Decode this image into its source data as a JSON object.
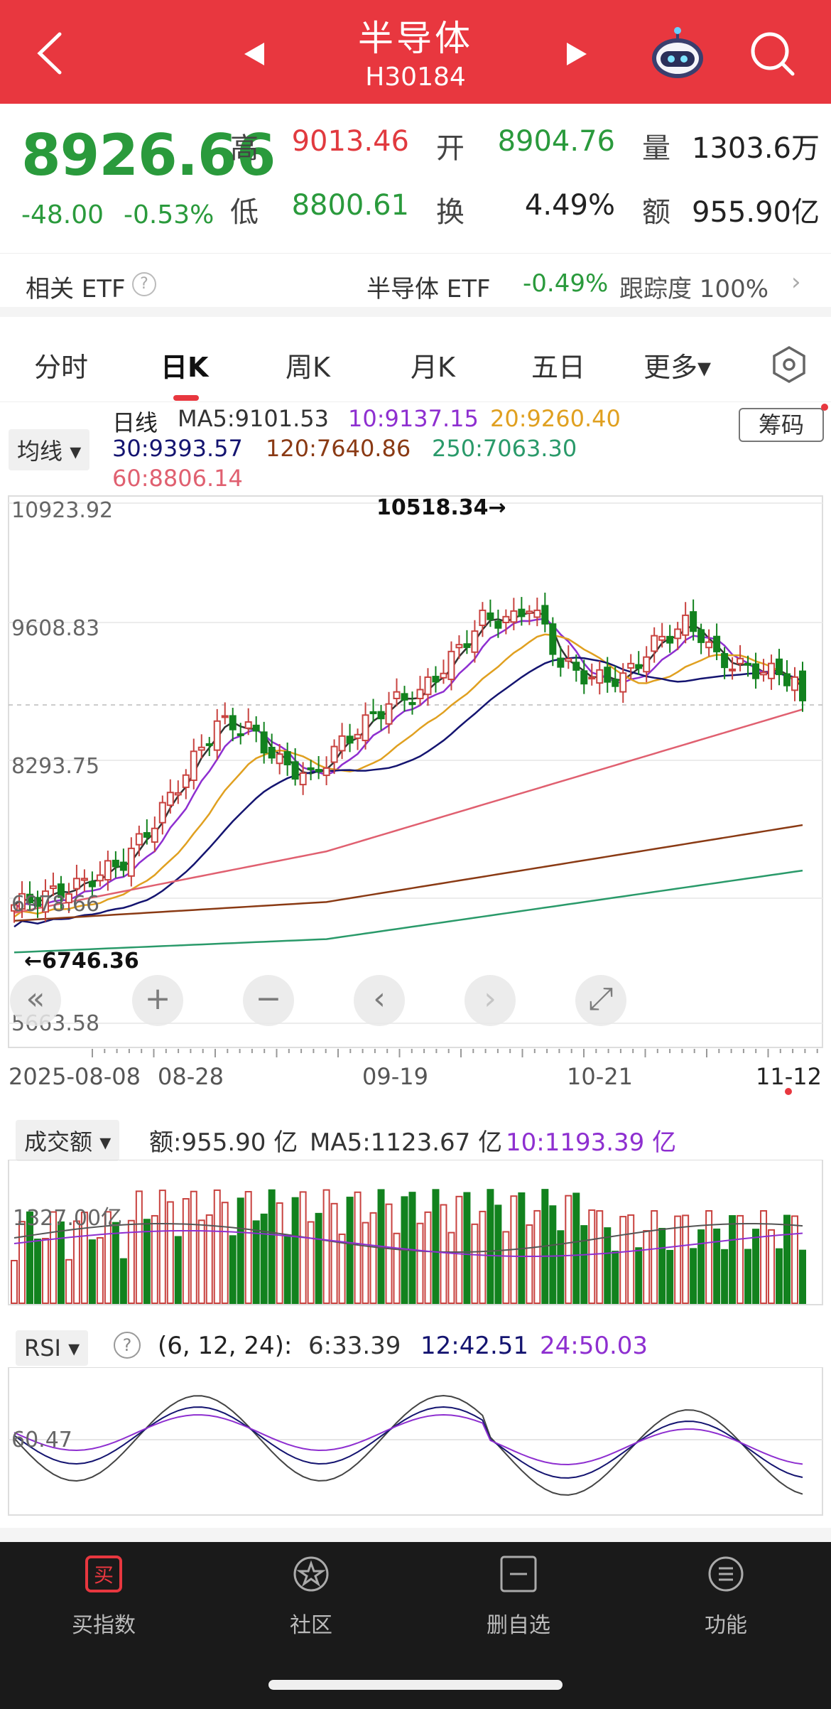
{
  "header": {
    "title": "半导体",
    "code": "H30184",
    "colors": {
      "bg": "#e8373f"
    }
  },
  "quote": {
    "price": "8926.66",
    "change": "-48.00",
    "change_pct": "-0.53%",
    "high_label": "高",
    "high": "9013.46",
    "open_label": "开",
    "open": "8904.76",
    "volume_label": "量",
    "volume": "1303.6万",
    "low_label": "低",
    "low": "8800.61",
    "turnover_label": "换",
    "turnover": "4.49%",
    "amount_label": "额",
    "amount": "955.90亿"
  },
  "etf": {
    "label": "相关 ETF",
    "help_icon": "question-circle-icon",
    "name": "半导体 ETF",
    "pct": "-0.49%",
    "tracking": "跟踪度  100%",
    "arrow": "›"
  },
  "tabs": [
    {
      "label": "分时"
    },
    {
      "label": "日K",
      "active": true
    },
    {
      "label": "周K"
    },
    {
      "label": "月K"
    },
    {
      "label": "五日"
    },
    {
      "label": "更多▾"
    }
  ],
  "ma_legend": {
    "selector": "均线",
    "title": "日线",
    "ma5": "MA5:9101.53",
    "ma10": "10:9137.15",
    "ma20": "20:9260.40",
    "ma30": "30:9393.57",
    "ma120": "120:7640.86",
    "ma250": "250:7063.30",
    "ma60": "60:8806.14",
    "chip_button": "筹码",
    "colors": {
      "ma5": "#333333",
      "ma10": "#8e2fd0",
      "ma20": "#e0a020",
      "ma30": "#141470",
      "ma60": "#e06070",
      "ma120": "#8a3a14",
      "ma250": "#2a9a6a"
    }
  },
  "price_axis": {
    "ticks": [
      "10923.92",
      "9608.83",
      "8293.75",
      "6978.66",
      "5663.58"
    ],
    "max_label": "10518.34→",
    "min_label": "←6746.36",
    "dates": [
      "2025-08-08",
      "08-28",
      "09-19",
      "10-21",
      "11-12"
    ]
  },
  "chart_tools": [
    "«",
    "+",
    "−",
    "‹",
    "›",
    "⤢"
  ],
  "volume_panel": {
    "selector": "成交额",
    "amount": "额:955.90 亿",
    "ma5": "MA5:1123.67 亿",
    "ma10": "10:1193.39 亿",
    "tick": "1327.00亿"
  },
  "rsi_panel": {
    "selector": "RSI",
    "params": "(6, 12, 24):",
    "rsi6": "6:33.39",
    "rsi12": "12:42.51",
    "rsi24": "24:50.03",
    "tick": "60.47"
  },
  "bottom_nav": [
    {
      "label": "买指数",
      "icon": "buy-icon"
    },
    {
      "label": "社区",
      "icon": "community-star-icon"
    },
    {
      "label": "删自选",
      "icon": "remove-watchlist-icon"
    },
    {
      "label": "功能",
      "icon": "menu-icon"
    }
  ]
}
